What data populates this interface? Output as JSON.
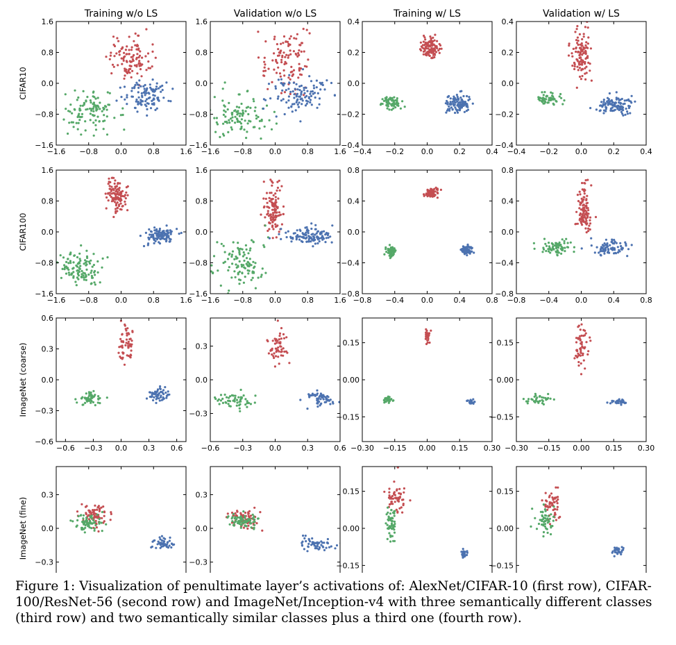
{
  "figure": {
    "column_titles": [
      "Training w/o LS",
      "Validation w/o LS",
      "Training w/ LS",
      "Validation w/ LS"
    ],
    "row_labels": [
      "CIFAR10",
      "CIFAR100",
      "ImageNet (coarse)",
      "ImageNet (fine)"
    ],
    "colors": {
      "red": "#c44e52",
      "green": "#55a868",
      "blue": "#4c72b0"
    },
    "caption": "Figure 1: Visualization of penultimate layer’s activations of: AlexNet/CIFAR-10 (first row), CIFAR-100/ResNet-56 (second row) and ImageNet/Inception-v4 with three semantically different classes (third row) and two semantically similar classes plus a third one (fourth row)."
  },
  "chart_data": [
    {
      "type": "scatter",
      "row": 0,
      "col": 0,
      "title": "Training w/o LS",
      "ylabel": "CIFAR10",
      "xlim": [
        -1.6,
        1.6
      ],
      "ylim": [
        -1.6,
        1.6
      ],
      "xticks": [
        "−1.6",
        "−0.8",
        "0.0",
        "0.8",
        "1.6"
      ],
      "yticks": [
        "−1.6",
        "−0.8",
        "0.0",
        "0.8",
        "1.6"
      ],
      "series": [
        {
          "color": "#c44e52",
          "center": [
            0.2,
            0.65
          ],
          "spread": [
            0.25,
            0.28
          ],
          "n": 110
        },
        {
          "color": "#55a868",
          "center": [
            -0.8,
            -0.75
          ],
          "spread": [
            0.35,
            0.25
          ],
          "n": 110
        },
        {
          "color": "#4c72b0",
          "center": [
            0.6,
            -0.3
          ],
          "spread": [
            0.25,
            0.2
          ],
          "n": 110
        }
      ]
    },
    {
      "type": "scatter",
      "row": 0,
      "col": 1,
      "title": "Validation w/o LS",
      "xlim": [
        -1.6,
        1.6
      ],
      "ylim": [
        -1.6,
        1.6
      ],
      "xticks": [
        "−1.6",
        "−0.8",
        "0.0",
        "0.8",
        "1.6"
      ],
      "yticks": [
        "−1.6",
        "−0.8",
        "0.0",
        "0.8",
        "1.6"
      ],
      "series": [
        {
          "color": "#c44e52",
          "center": [
            0.25,
            0.6
          ],
          "spread": [
            0.3,
            0.38
          ],
          "n": 110
        },
        {
          "color": "#55a868",
          "center": [
            -0.9,
            -0.8
          ],
          "spread": [
            0.4,
            0.32
          ],
          "n": 110
        },
        {
          "color": "#4c72b0",
          "center": [
            0.6,
            -0.3
          ],
          "spread": [
            0.35,
            0.25
          ],
          "n": 110
        }
      ]
    },
    {
      "type": "scatter",
      "row": 0,
      "col": 2,
      "title": "Training w/ LS",
      "xlim": [
        -0.4,
        0.4
      ],
      "ylim": [
        -0.4,
        0.4
      ],
      "xticks": [
        "−0.4",
        "−0.2",
        "0.0",
        "0.2",
        "0.4"
      ],
      "yticks": [
        "−0.4",
        "−0.2",
        "0.0",
        "0.2",
        "0.4"
      ],
      "series": [
        {
          "color": "#c44e52",
          "center": [
            0.02,
            0.23
          ],
          "spread": [
            0.03,
            0.03
          ],
          "n": 110
        },
        {
          "color": "#55a868",
          "center": [
            -0.22,
            -0.13
          ],
          "spread": [
            0.03,
            0.02
          ],
          "n": 60
        },
        {
          "color": "#4c72b0",
          "center": [
            0.2,
            -0.13
          ],
          "spread": [
            0.04,
            0.03
          ],
          "n": 110
        }
      ]
    },
    {
      "type": "scatter",
      "row": 0,
      "col": 3,
      "title": "Validation w/ LS",
      "xlim": [
        -0.4,
        0.4
      ],
      "ylim": [
        -0.4,
        0.4
      ],
      "xticks": [
        "−0.4",
        "−0.2",
        "0.0",
        "0.2",
        "0.4"
      ],
      "yticks": [
        "−0.4",
        "−0.2",
        "0.0",
        "0.2",
        "0.4"
      ],
      "series": [
        {
          "color": "#c44e52",
          "center": [
            0.0,
            0.18
          ],
          "spread": [
            0.03,
            0.08
          ],
          "n": 110
        },
        {
          "color": "#55a868",
          "center": [
            -0.2,
            -0.1
          ],
          "spread": [
            0.04,
            0.02
          ],
          "n": 60
        },
        {
          "color": "#4c72b0",
          "center": [
            0.2,
            -0.14
          ],
          "spread": [
            0.05,
            0.03
          ],
          "n": 110
        }
      ]
    },
    {
      "type": "scatter",
      "row": 1,
      "col": 0,
      "ylabel": "CIFAR100",
      "xlim": [
        -1.6,
        1.6
      ],
      "ylim": [
        -1.6,
        1.6
      ],
      "xticks": [
        "−1.6",
        "−0.8",
        "0.0",
        "0.8",
        "1.6"
      ],
      "yticks": [
        "−1.6",
        "−0.8",
        "0.0",
        "0.8",
        "1.6"
      ],
      "series": [
        {
          "color": "#c44e52",
          "center": [
            -0.1,
            0.95
          ],
          "spread": [
            0.12,
            0.2
          ],
          "n": 110
        },
        {
          "color": "#55a868",
          "center": [
            -1.0,
            -0.95
          ],
          "spread": [
            0.22,
            0.22
          ],
          "n": 110
        },
        {
          "color": "#4c72b0",
          "center": [
            1.0,
            -0.1
          ],
          "spread": [
            0.18,
            0.1
          ],
          "n": 110
        }
      ]
    },
    {
      "type": "scatter",
      "row": 1,
      "col": 1,
      "xlim": [
        -1.6,
        1.6
      ],
      "ylim": [
        -1.6,
        1.6
      ],
      "xticks": [
        "−1.6",
        "−0.8",
        "0.0",
        "0.8",
        "1.6"
      ],
      "yticks": [
        "−1.6",
        "−0.8",
        "0.0",
        "0.8",
        "1.6"
      ],
      "series": [
        {
          "color": "#c44e52",
          "center": [
            -0.05,
            0.6
          ],
          "spread": [
            0.12,
            0.3
          ],
          "n": 110
        },
        {
          "color": "#55a868",
          "center": [
            -0.8,
            -0.8
          ],
          "spread": [
            0.35,
            0.35
          ],
          "n": 110
        },
        {
          "color": "#4c72b0",
          "center": [
            0.8,
            -0.1
          ],
          "spread": [
            0.3,
            0.1
          ],
          "n": 110
        }
      ]
    },
    {
      "type": "scatter",
      "row": 1,
      "col": 2,
      "xlim": [
        -0.8,
        0.8
      ],
      "ylim": [
        -0.8,
        0.8
      ],
      "xticks": [
        "−0.8",
        "−0.4",
        "0.0",
        "0.4",
        "0.8"
      ],
      "yticks": [
        "−0.8",
        "−0.4",
        "0.0",
        "0.4",
        "0.8"
      ],
      "series": [
        {
          "color": "#c44e52",
          "center": [
            0.05,
            0.5
          ],
          "spread": [
            0.04,
            0.03
          ],
          "n": 80
        },
        {
          "color": "#55a868",
          "center": [
            -0.45,
            -0.25
          ],
          "spread": [
            0.03,
            0.03
          ],
          "n": 60
        },
        {
          "color": "#4c72b0",
          "center": [
            0.48,
            -0.23
          ],
          "spread": [
            0.04,
            0.03
          ],
          "n": 70
        }
      ]
    },
    {
      "type": "scatter",
      "row": 1,
      "col": 3,
      "xlim": [
        -0.8,
        0.8
      ],
      "ylim": [
        -0.8,
        0.8
      ],
      "xticks": [
        "−0.8",
        "−0.4",
        "0.0",
        "0.4",
        "0.8"
      ],
      "yticks": [
        "−0.8",
        "−0.4",
        "0.0",
        "0.4",
        "0.8"
      ],
      "series": [
        {
          "color": "#c44e52",
          "center": [
            0.03,
            0.3
          ],
          "spread": [
            0.04,
            0.15
          ],
          "n": 110
        },
        {
          "color": "#55a868",
          "center": [
            -0.3,
            -0.2
          ],
          "spread": [
            0.1,
            0.05
          ],
          "n": 70
        },
        {
          "color": "#4c72b0",
          "center": [
            0.35,
            -0.2
          ],
          "spread": [
            0.1,
            0.05
          ],
          "n": 80
        }
      ]
    },
    {
      "type": "scatter",
      "row": 2,
      "col": 0,
      "ylabel": "ImageNet (coarse)",
      "xlim": [
        -0.7,
        0.7
      ],
      "ylim": [
        -0.6,
        0.6
      ],
      "xticks": [
        "−0.6",
        "−0.3",
        "0.0",
        "0.3",
        "0.6"
      ],
      "yticks": [
        "−0.6",
        "−0.3",
        "0.0",
        "0.3",
        "0.6"
      ],
      "series": [
        {
          "color": "#c44e52",
          "center": [
            0.05,
            0.35
          ],
          "spread": [
            0.04,
            0.1
          ],
          "n": 55
        },
        {
          "color": "#55a868",
          "center": [
            -0.35,
            -0.18
          ],
          "spread": [
            0.07,
            0.03
          ],
          "n": 55
        },
        {
          "color": "#4c72b0",
          "center": [
            0.4,
            -0.15
          ],
          "spread": [
            0.06,
            0.03
          ],
          "n": 55
        }
      ]
    },
    {
      "type": "scatter",
      "row": 2,
      "col": 1,
      "xlim": [
        -0.6,
        0.6
      ],
      "ylim": [
        -0.55,
        0.55
      ],
      "xticks": [
        "−0.6",
        "−0.3",
        "0.0",
        "0.3",
        "0.6"
      ],
      "yticks": [
        "−0.3",
        "0.0",
        "0.3"
      ],
      "series": [
        {
          "color": "#c44e52",
          "center": [
            0.03,
            0.3
          ],
          "spread": [
            0.05,
            0.1
          ],
          "n": 55
        },
        {
          "color": "#55a868",
          "center": [
            -0.38,
            -0.18
          ],
          "spread": [
            0.08,
            0.04
          ],
          "n": 55
        },
        {
          "color": "#4c72b0",
          "center": [
            0.42,
            -0.17
          ],
          "spread": [
            0.07,
            0.03
          ],
          "n": 55
        }
      ]
    },
    {
      "type": "scatter",
      "row": 2,
      "col": 2,
      "xlim": [
        -0.3,
        0.3
      ],
      "ylim": [
        -0.25,
        0.25
      ],
      "xticks": [
        "−0.30",
        "−0.15",
        "0.00",
        "0.15",
        "0.30"
      ],
      "yticks": [
        "−0.15",
        "0.00",
        "0.15"
      ],
      "series": [
        {
          "color": "#c44e52",
          "center": [
            0.0,
            0.18
          ],
          "spread": [
            0.006,
            0.015
          ],
          "n": 30
        },
        {
          "color": "#55a868",
          "center": [
            -0.18,
            -0.08
          ],
          "spread": [
            0.01,
            0.006
          ],
          "n": 30
        },
        {
          "color": "#4c72b0",
          "center": [
            0.2,
            -0.09
          ],
          "spread": [
            0.008,
            0.004
          ],
          "n": 30
        }
      ]
    },
    {
      "type": "scatter",
      "row": 2,
      "col": 3,
      "xlim": [
        -0.3,
        0.3
      ],
      "ylim": [
        -0.25,
        0.25
      ],
      "xticks": [
        "−0.30",
        "−0.15",
        "0.00",
        "0.15",
        "0.30"
      ],
      "yticks": [
        "−0.15",
        "0.00",
        "0.15"
      ],
      "series": [
        {
          "color": "#c44e52",
          "center": [
            0.0,
            0.13
          ],
          "spread": [
            0.015,
            0.045
          ],
          "n": 55
        },
        {
          "color": "#55a868",
          "center": [
            -0.2,
            -0.08
          ],
          "spread": [
            0.03,
            0.012
          ],
          "n": 35
        },
        {
          "color": "#4c72b0",
          "center": [
            0.18,
            -0.09
          ],
          "spread": [
            0.025,
            0.006
          ],
          "n": 35
        }
      ]
    },
    {
      "type": "scatter",
      "row": 3,
      "col": 0,
      "ylabel": "ImageNet (fine)",
      "xlim": [
        -0.6,
        0.6
      ],
      "ylim": [
        -0.55,
        0.55
      ],
      "xticks": [
        "−0.6",
        "−0.3",
        "0.0",
        "0.3",
        "0.6"
      ],
      "yticks": [
        "−0.3",
        "0.0",
        "0.3"
      ],
      "series": [
        {
          "color": "#c44e52",
          "center": [
            -0.25,
            0.12
          ],
          "spread": [
            0.07,
            0.05
          ],
          "n": 75
        },
        {
          "color": "#55a868",
          "center": [
            -0.3,
            0.06
          ],
          "spread": [
            0.06,
            0.04
          ],
          "n": 65
        },
        {
          "color": "#4c72b0",
          "center": [
            0.38,
            -0.14
          ],
          "spread": [
            0.06,
            0.025
          ],
          "n": 55
        }
      ]
    },
    {
      "type": "scatter",
      "row": 3,
      "col": 1,
      "xlim": [
        -0.6,
        0.6
      ],
      "ylim": [
        -0.55,
        0.55
      ],
      "xticks": [
        "−0.6",
        "−0.3",
        "0.0",
        "0.3",
        "0.6"
      ],
      "yticks": [
        "−0.3",
        "0.0",
        "0.3"
      ],
      "series": [
        {
          "color": "#c44e52",
          "center": [
            -0.28,
            0.09
          ],
          "spread": [
            0.07,
            0.04
          ],
          "n": 75
        },
        {
          "color": "#55a868",
          "center": [
            -0.3,
            0.07
          ],
          "spread": [
            0.07,
            0.03
          ],
          "n": 75
        },
        {
          "color": "#4c72b0",
          "center": [
            0.38,
            -0.14
          ],
          "spread": [
            0.08,
            0.03
          ],
          "n": 55
        }
      ]
    },
    {
      "type": "scatter",
      "row": 3,
      "col": 2,
      "xlim": [
        -0.3,
        0.3
      ],
      "ylim": [
        -0.25,
        0.25
      ],
      "xticks": [
        "−0.30",
        "−0.15",
        "0.00",
        "0.15",
        "0.30"
      ],
      "yticks": [
        "−0.15",
        "0.00",
        "0.15"
      ],
      "series": [
        {
          "color": "#c44e52",
          "center": [
            -0.14,
            0.12
          ],
          "spread": [
            0.02,
            0.035
          ],
          "n": 55
        },
        {
          "color": "#55a868",
          "center": [
            -0.17,
            0.02
          ],
          "spread": [
            0.012,
            0.03
          ],
          "n": 55
        },
        {
          "color": "#4c72b0",
          "center": [
            0.17,
            -0.1
          ],
          "spread": [
            0.006,
            0.01
          ],
          "n": 30
        }
      ]
    },
    {
      "type": "scatter",
      "row": 3,
      "col": 3,
      "xlim": [
        -0.3,
        0.3
      ],
      "ylim": [
        -0.25,
        0.25
      ],
      "xticks": [
        "−0.30",
        "−0.15",
        "0.00",
        "0.15",
        "0.30"
      ],
      "yticks": [
        "−0.15",
        "0.00",
        "0.15"
      ],
      "series": [
        {
          "color": "#c44e52",
          "center": [
            -0.14,
            0.1
          ],
          "spread": [
            0.02,
            0.035
          ],
          "n": 55
        },
        {
          "color": "#55a868",
          "center": [
            -0.16,
            0.03
          ],
          "spread": [
            0.02,
            0.025
          ],
          "n": 50
        },
        {
          "color": "#4c72b0",
          "center": [
            0.17,
            -0.09
          ],
          "spread": [
            0.015,
            0.01
          ],
          "n": 30
        }
      ]
    }
  ]
}
